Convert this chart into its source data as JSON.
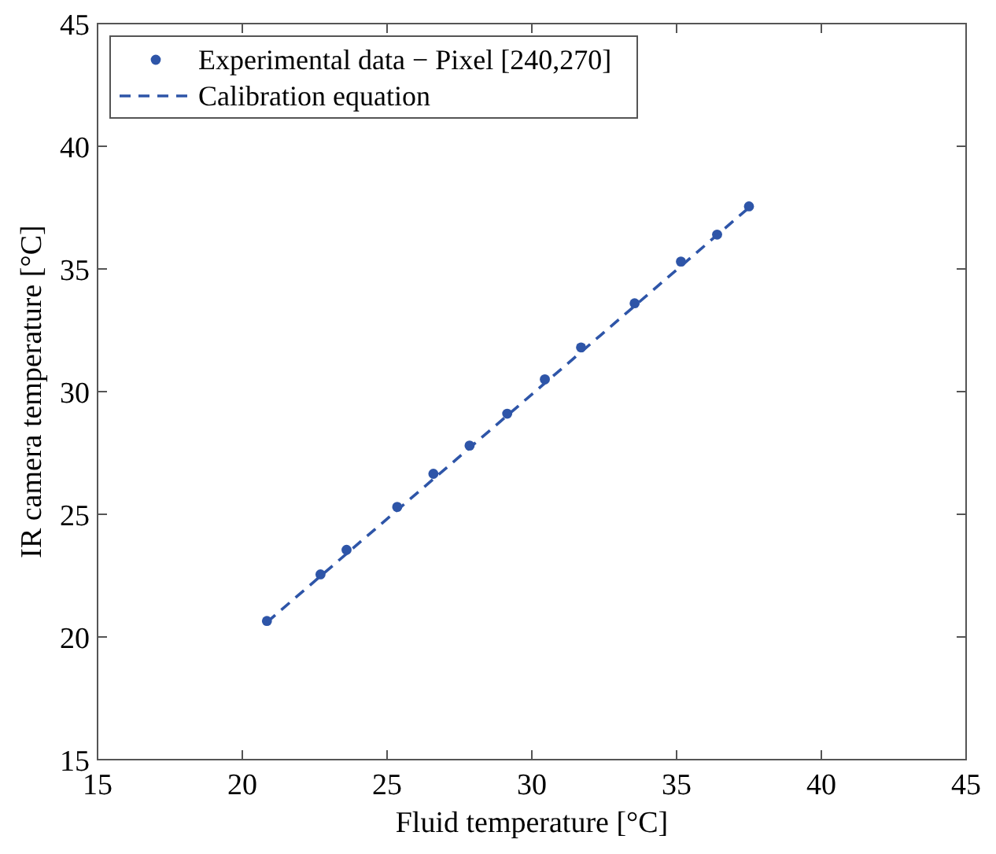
{
  "chart_data": {
    "type": "scatter",
    "xlabel": "Fluid temperature [°C]",
    "ylabel": "IR camera temperature [°C]",
    "xlim": [
      15,
      45
    ],
    "ylim": [
      15,
      45
    ],
    "xticks": [
      15,
      20,
      25,
      30,
      35,
      40,
      45
    ],
    "yticks": [
      15,
      20,
      25,
      30,
      35,
      40,
      45
    ],
    "grid": false,
    "legend": "top left",
    "series": [
      {
        "name": "Experimental data − Pixel [240,270]",
        "marker": "circle",
        "color": "#2e55a8",
        "x": [
          20.85,
          22.7,
          23.6,
          25.35,
          26.6,
          27.85,
          29.15,
          30.45,
          31.7,
          33.55,
          35.15,
          36.4,
          37.5
        ],
        "values": [
          20.65,
          22.55,
          23.55,
          25.3,
          26.65,
          27.8,
          29.1,
          30.5,
          31.8,
          33.6,
          35.3,
          36.4,
          37.55
        ]
      },
      {
        "name": "Calibration equation",
        "type": "line",
        "marker": "none",
        "line_style": "dashed",
        "color": "#2e55a8",
        "x": [
          20.85,
          37.5
        ],
        "values": [
          20.6,
          37.5
        ]
      }
    ]
  }
}
